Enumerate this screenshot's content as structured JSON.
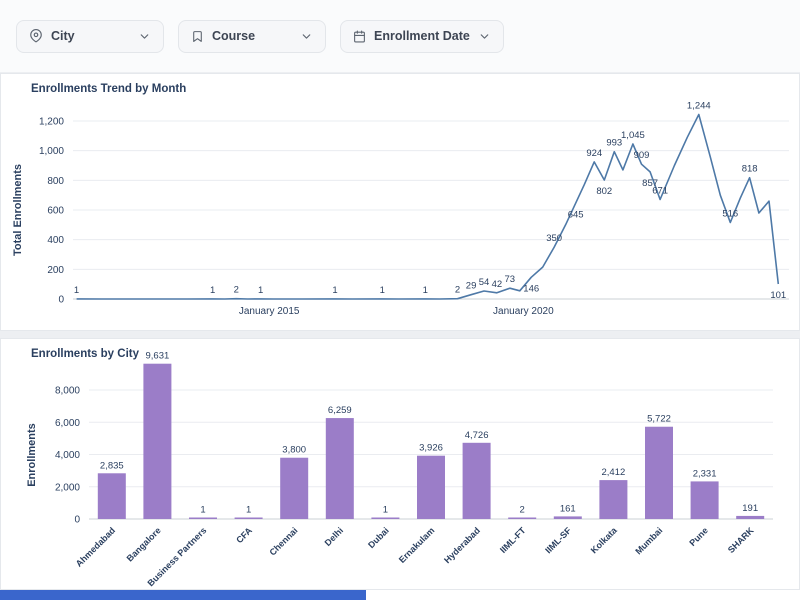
{
  "filters": [
    {
      "label": "City",
      "icon": "location-pin-icon"
    },
    {
      "label": "Course",
      "icon": "course-bookmark-icon"
    },
    {
      "label": "Enrollment Date",
      "icon": "calendar-icon"
    }
  ],
  "colors": {
    "line": "#4e79a7",
    "bar": "#9b7dc8",
    "text_dark": "#2a3f5f",
    "scroll_thumb": "#3a66cc"
  },
  "chart_data": [
    {
      "type": "line",
      "title": "Enrollments Trend by Month",
      "ylabel": "Total Enrollments",
      "ylim": [
        0,
        1300
      ],
      "yticks": [
        0,
        200,
        400,
        600,
        800,
        1000,
        1200
      ],
      "ytick_labels": [
        "0",
        "200",
        "400",
        "600",
        "800",
        "1,000",
        "1,200"
      ],
      "line_color": "#4e79a7",
      "grid": true,
      "x_axis_labels": [
        {
          "label": "January 2015",
          "f": 0.274
        },
        {
          "label": "January 2020",
          "f": 0.629
        }
      ],
      "points": [
        {
          "f": 0.005,
          "v": 1,
          "label": "1"
        },
        {
          "f": 0.04,
          "v": 0
        },
        {
          "f": 0.08,
          "v": 0
        },
        {
          "f": 0.12,
          "v": 0
        },
        {
          "f": 0.16,
          "v": 0
        },
        {
          "f": 0.195,
          "v": 1,
          "label": "1"
        },
        {
          "f": 0.212,
          "v": 0
        },
        {
          "f": 0.228,
          "v": 2,
          "label": "2"
        },
        {
          "f": 0.244,
          "v": 0
        },
        {
          "f": 0.262,
          "v": 1,
          "label": "1"
        },
        {
          "f": 0.28,
          "v": 0
        },
        {
          "f": 0.32,
          "v": 0
        },
        {
          "f": 0.366,
          "v": 1,
          "label": "1"
        },
        {
          "f": 0.39,
          "v": 0
        },
        {
          "f": 0.432,
          "v": 1,
          "label": "1"
        },
        {
          "f": 0.455,
          "v": 0
        },
        {
          "f": 0.492,
          "v": 1,
          "label": "1"
        },
        {
          "f": 0.512,
          "v": 0
        },
        {
          "f": 0.537,
          "v": 2,
          "label": "2"
        },
        {
          "f": 0.556,
          "v": 29,
          "label": "29"
        },
        {
          "f": 0.574,
          "v": 54,
          "label": "54"
        },
        {
          "f": 0.592,
          "v": 42,
          "label": "42"
        },
        {
          "f": 0.61,
          "v": 73,
          "label": "73"
        },
        {
          "f": 0.624,
          "v": 55
        },
        {
          "f": 0.64,
          "v": 146,
          "label": "146",
          "lp": "b"
        },
        {
          "f": 0.656,
          "v": 215
        },
        {
          "f": 0.672,
          "v": 350,
          "label": "350"
        },
        {
          "f": 0.688,
          "v": 500
        },
        {
          "f": 0.702,
          "v": 645,
          "label": "645",
          "lp": "b"
        },
        {
          "f": 0.714,
          "v": 770
        },
        {
          "f": 0.728,
          "v": 924,
          "label": "924"
        },
        {
          "f": 0.742,
          "v": 802,
          "label": "802",
          "lp": "b"
        },
        {
          "f": 0.756,
          "v": 993,
          "label": "993"
        },
        {
          "f": 0.768,
          "v": 870
        },
        {
          "f": 0.782,
          "v": 1045,
          "label": "1,045"
        },
        {
          "f": 0.794,
          "v": 909,
          "label": "909"
        },
        {
          "f": 0.806,
          "v": 857,
          "label": "857",
          "lp": "b"
        },
        {
          "f": 0.82,
          "v": 671,
          "label": "671"
        },
        {
          "f": 0.84,
          "v": 900
        },
        {
          "f": 0.858,
          "v": 1090
        },
        {
          "f": 0.874,
          "v": 1244,
          "label": "1,244"
        },
        {
          "f": 0.89,
          "v": 960
        },
        {
          "f": 0.904,
          "v": 700
        },
        {
          "f": 0.918,
          "v": 516,
          "label": "516"
        },
        {
          "f": 0.932,
          "v": 680
        },
        {
          "f": 0.945,
          "v": 818,
          "label": "818"
        },
        {
          "f": 0.958,
          "v": 580
        },
        {
          "f": 0.972,
          "v": 660
        },
        {
          "f": 0.985,
          "v": 101,
          "label": "101",
          "lp": "b"
        }
      ]
    },
    {
      "type": "bar",
      "title": "Enrollments by City",
      "ylabel": "Enrollments",
      "ylim": [
        0,
        10000
      ],
      "yticks": [
        0,
        2000,
        4000,
        6000,
        8000
      ],
      "ytick_labels": [
        "0",
        "2,000",
        "4,000",
        "6,000",
        "8,000"
      ],
      "bar_color": "#9b7dc8",
      "grid": true,
      "categories": [
        "Ahmedabad",
        "Bangalore",
        "Business Partners",
        "CFA",
        "Chennai",
        "Delhi",
        "Dubai",
        "Ernakulam",
        "Hyderabad",
        "IIML-FT",
        "IIML-SF",
        "Kolkata",
        "Mumbai",
        "Pune",
        "SHARK"
      ],
      "values": [
        2835,
        9631,
        1,
        1,
        3800,
        6259,
        1,
        3926,
        4726,
        2,
        161,
        2412,
        5722,
        2331,
        191
      ],
      "value_labels": [
        "2,835",
        "9,631",
        "1",
        "1",
        "3,800",
        "6,259",
        "1",
        "3,926",
        "4,726",
        "2",
        "161",
        "2,412",
        "5,722",
        "2,331",
        "191"
      ]
    }
  ]
}
